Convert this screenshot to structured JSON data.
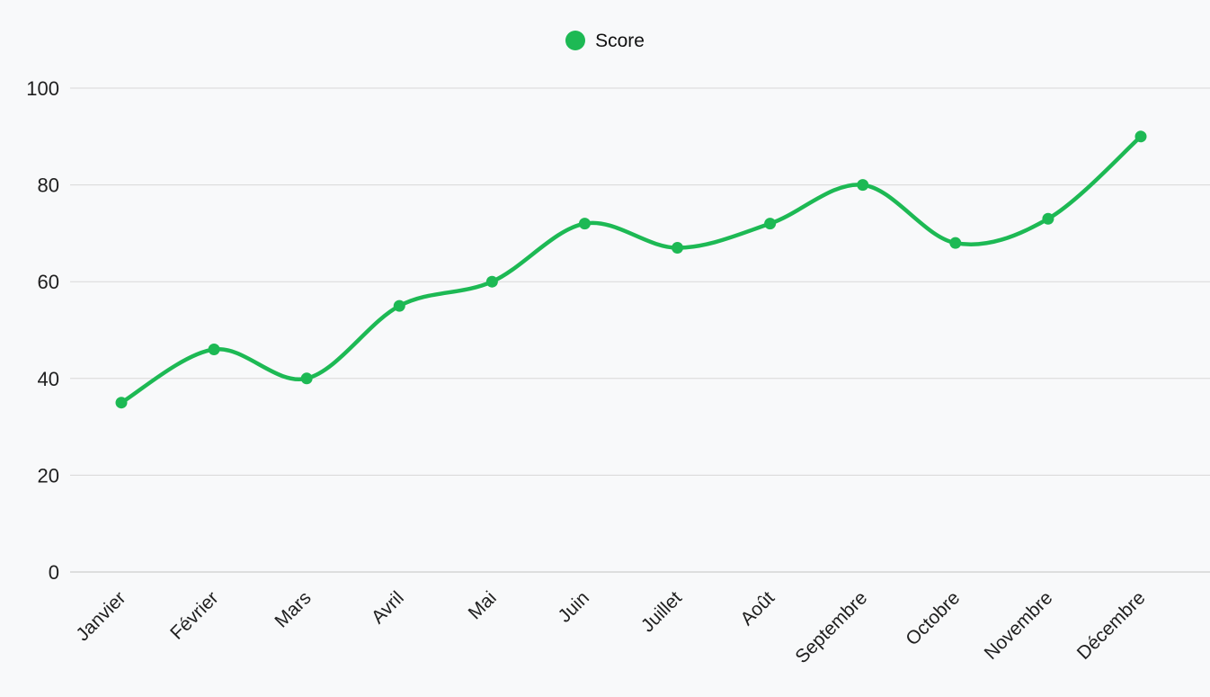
{
  "legend": {
    "label": "Score",
    "marker_color": "#1db954"
  },
  "chart_data": {
    "type": "line",
    "title": "",
    "categories": [
      "Janvier",
      "Février",
      "Mars",
      "Avril",
      "Mai",
      "Juin",
      "Juillet",
      "Août",
      "Septembre",
      "Octobre",
      "Novembre",
      "Décembre"
    ],
    "series": [
      {
        "name": "Score",
        "values": [
          35,
          46,
          40,
          55,
          60,
          72,
          67,
          72,
          80,
          68,
          73,
          90
        ]
      }
    ],
    "xlabel": "",
    "ylabel": "",
    "ylim": [
      0,
      100
    ],
    "yticks": [
      0,
      20,
      40,
      60,
      80,
      100
    ],
    "grid": true,
    "smooth": true,
    "legend_position": "top-center",
    "line_color": "#1db954",
    "point_color": "#1db954",
    "grid_color": "#d8d8d8",
    "baseline_color": "#c2c2c2",
    "tick_label_color": "#1f1f1f",
    "background": "#f8f9fa"
  }
}
